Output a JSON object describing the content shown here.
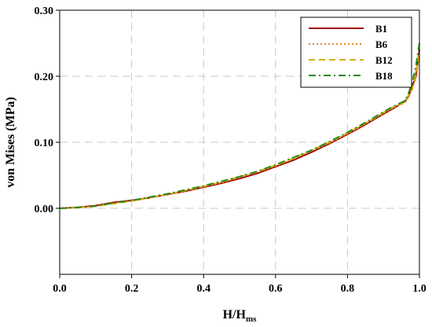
{
  "chart_data": {
    "type": "line",
    "xlabel": "H/H",
    "xlabel_sub": "ms",
    "ylabel": "von Mises (MPa)",
    "xlim": [
      0,
      1
    ],
    "ylim": [
      -0.1,
      0.3
    ],
    "x_ticks": [
      "0.0",
      "0.2",
      "0.4",
      "0.6",
      "0.8",
      "1.0"
    ],
    "y_ticks": [
      "0.00",
      "0.10",
      "0.20",
      "0.30"
    ],
    "y_tick_values": [
      0,
      0.1,
      0.2,
      0.3
    ],
    "x_tick_values": [
      0,
      0.2,
      0.4,
      0.6,
      0.8,
      1.0
    ],
    "grid": true,
    "legend_position": "top-right",
    "x": [
      0.0,
      0.05,
      0.1,
      0.15,
      0.2,
      0.25,
      0.3,
      0.35,
      0.4,
      0.45,
      0.5,
      0.55,
      0.6,
      0.65,
      0.7,
      0.75,
      0.8,
      0.85,
      0.9,
      0.93,
      0.96,
      0.97,
      0.98,
      0.99,
      1.0
    ],
    "series": [
      {
        "name": "B1",
        "color": "#a00000",
        "dash": "solid",
        "values": [
          0.0,
          0.0015,
          0.004,
          0.009,
          0.012,
          0.016,
          0.021,
          0.026,
          0.032,
          0.038,
          0.045,
          0.053,
          0.063,
          0.073,
          0.085,
          0.098,
          0.112,
          0.127,
          0.143,
          0.152,
          0.162,
          0.17,
          0.185,
          0.2,
          0.24
        ]
      },
      {
        "name": "B6",
        "color": "#e08a2a",
        "dash": "dotted",
        "values": [
          0.0,
          0.0012,
          0.0035,
          0.008,
          0.011,
          0.016,
          0.021,
          0.027,
          0.033,
          0.039,
          0.047,
          0.055,
          0.064,
          0.075,
          0.087,
          0.099,
          0.113,
          0.128,
          0.144,
          0.153,
          0.16,
          0.168,
          0.182,
          0.195,
          0.23
        ]
      },
      {
        "name": "B12",
        "color": "#d4b000",
        "dash": "dashed",
        "values": [
          0.0,
          0.001,
          0.003,
          0.007,
          0.011,
          0.016,
          0.021,
          0.027,
          0.033,
          0.04,
          0.048,
          0.056,
          0.065,
          0.076,
          0.088,
          0.1,
          0.114,
          0.129,
          0.145,
          0.154,
          0.161,
          0.172,
          0.18,
          0.205,
          0.235
        ]
      },
      {
        "name": "B18",
        "color": "#2a8a1a",
        "dash": "dashdot",
        "values": [
          0.0,
          0.0012,
          0.0035,
          0.008,
          0.012,
          0.017,
          0.022,
          0.028,
          0.034,
          0.041,
          0.048,
          0.056,
          0.066,
          0.077,
          0.088,
          0.101,
          0.115,
          0.13,
          0.146,
          0.155,
          0.163,
          0.175,
          0.19,
          0.215,
          0.25
        ]
      }
    ]
  }
}
